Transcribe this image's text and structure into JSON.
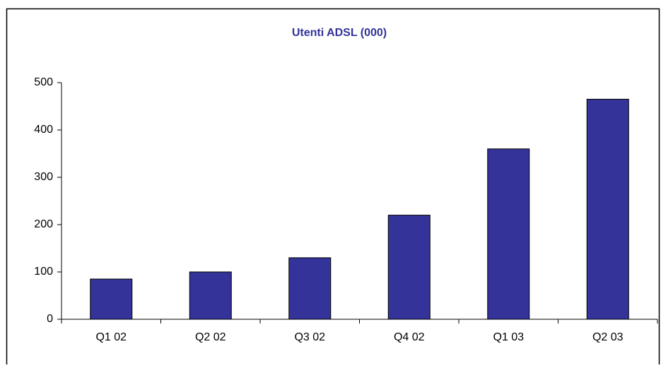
{
  "chart_data": {
    "type": "bar",
    "title": "Utenti ADSL (000)",
    "categories": [
      "Q1 02",
      "Q2 02",
      "Q3 02",
      "Q4 02",
      "Q1 03",
      "Q2 03"
    ],
    "values": [
      85,
      100,
      130,
      220,
      360,
      465
    ],
    "color": "#333399",
    "ylim": [
      0,
      500
    ],
    "yticks": [
      0,
      100,
      200,
      300,
      400,
      500
    ],
    "grid": false
  }
}
